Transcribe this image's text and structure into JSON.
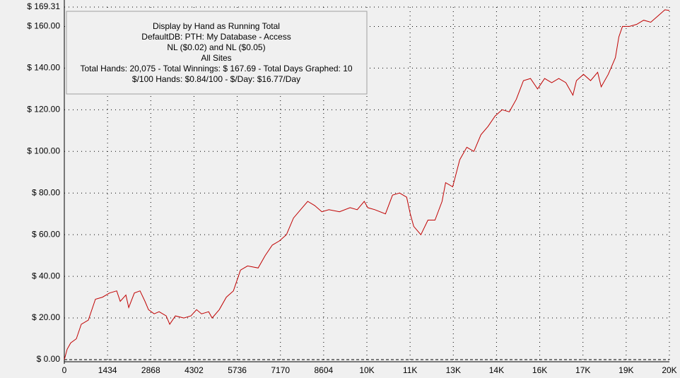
{
  "chart_data": {
    "type": "line",
    "annotations": [
      "Display by Hand as Running Total",
      "DefaultDB: PTH: My Database - Access",
      "NL ($0.02) and NL ($0.05)",
      "All Sites",
      "Total Hands: 20,075 - Total Winnings: $ 167.69 - Total Days Graphed: 10",
      "$/100 Hands: $0.84/100 - $/Day: $16.77/Day"
    ],
    "x": [
      0,
      94,
      211,
      399,
      563,
      798,
      1032,
      1267,
      1502,
      1737,
      1854,
      2042,
      2136,
      2324,
      2512,
      2676,
      2793,
      2981,
      3145,
      3380,
      3497,
      3685,
      3967,
      4201,
      4389,
      4553,
      4788,
      4905,
      5140,
      5375,
      5609,
      5844,
      6079,
      6431,
      6666,
      6900,
      7135,
      7370,
      7604,
      7839,
      8074,
      8308,
      8543,
      8778,
      9130,
      9482,
      9717,
      9951,
      10069,
      10303,
      10655,
      10890,
      11125,
      11359,
      11477,
      11594,
      11829,
      12064,
      12298,
      12533,
      12650,
      12885,
      13120,
      13354,
      13589,
      13824,
      14058,
      14293,
      14528,
      14763,
      14997,
      15232,
      15467,
      15701,
      15936,
      16171,
      16405,
      16640,
      16875,
      16992,
      17227,
      17461,
      17696,
      17813,
      18048,
      18283,
      18400,
      18518,
      18752,
      18987,
      19222,
      19457,
      19691,
      19926,
      20075
    ],
    "series": [
      {
        "name": "Running Total",
        "color": "#c00000",
        "values": [
          0,
          5,
          8,
          10,
          17,
          19,
          29,
          30,
          32,
          33,
          28,
          31,
          25,
          32,
          33,
          28,
          24,
          22,
          23,
          21,
          17,
          21,
          20,
          21,
          24,
          22,
          23,
          20,
          24,
          30,
          33,
          43,
          45,
          44,
          50,
          55,
          57,
          60,
          68,
          72,
          76,
          74,
          71,
          72,
          71,
          73,
          72,
          76,
          73,
          72,
          70,
          79,
          80,
          78,
          70,
          64,
          60,
          67,
          67,
          76,
          85,
          83,
          96,
          102,
          100,
          108,
          112,
          117,
          120,
          119,
          125,
          134,
          135,
          130,
          135,
          133,
          135,
          133,
          127,
          134,
          137,
          134,
          138,
          131,
          137,
          145,
          155,
          160,
          160,
          161,
          163,
          162,
          165,
          168,
          167.69
        ]
      }
    ],
    "xlim": [
      0,
      20076
    ],
    "ylim": [
      0,
      169.31
    ],
    "xticks": [
      0,
      1434,
      2868,
      4302,
      5736,
      7170,
      8604,
      {
        "value": 10038,
        "label": "10K"
      },
      {
        "value": 11472,
        "label": "11K"
      },
      {
        "value": 12906,
        "label": "13K"
      },
      {
        "value": 14340,
        "label": "14K"
      },
      {
        "value": 15774,
        "label": "16K"
      },
      {
        "value": 17208,
        "label": "17K"
      },
      {
        "value": 18642,
        "label": "19K"
      },
      {
        "value": 20076,
        "label": "20K"
      }
    ],
    "yticks": [
      {
        "value": 0,
        "label": "$ 0.00"
      },
      {
        "value": 20,
        "label": "$ 20.00"
      },
      {
        "value": 40,
        "label": "$ 40.00"
      },
      {
        "value": 60,
        "label": "$ 60.00"
      },
      {
        "value": 80,
        "label": "$ 80.00"
      },
      {
        "value": 100,
        "label": "$ 100.00"
      },
      {
        "value": 120,
        "label": "$ 120.00"
      },
      {
        "value": 140,
        "label": "$ 140.00"
      },
      {
        "value": 160,
        "label": "$ 160.00"
      },
      {
        "value": 169.31,
        "label": "$ 169.31"
      }
    ],
    "grid": true
  }
}
